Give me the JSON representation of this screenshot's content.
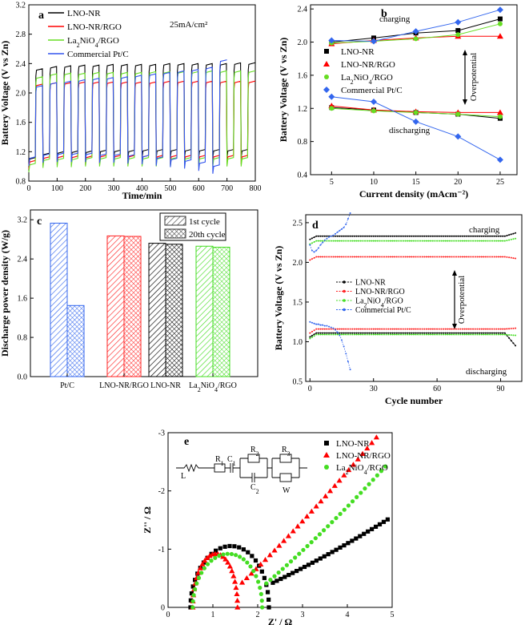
{
  "chart_data": [
    {
      "panel": "a",
      "type": "line",
      "annotation": "25mA/cm2",
      "xlabel": "Time/min",
      "ylabel": "Battery Voltage (V vs Zn)",
      "xlim": [
        0,
        800
      ],
      "ylim": [
        0.8,
        3.2
      ],
      "xticks": [
        0,
        100,
        200,
        300,
        400,
        500,
        600,
        700,
        800
      ],
      "yticks": [
        0.8,
        1.2,
        1.6,
        2.0,
        2.4,
        2.8,
        3.2
      ],
      "cycle_minutes": 50,
      "series": [
        {
          "name": "LNO-NR",
          "color": "#000000",
          "charge": [
            2.33,
            2.36,
            2.37,
            2.38,
            2.38,
            2.39,
            2.39,
            2.39,
            2.39,
            2.4,
            2.4,
            2.4,
            2.4,
            2.4,
            2.41,
            2.41
          ],
          "discharge": [
            1.12,
            1.18,
            1.2,
            1.21,
            1.21,
            1.22,
            1.22,
            1.22,
            1.23,
            1.23,
            1.23,
            1.23,
            1.23,
            1.23,
            1.23,
            1.23
          ]
        },
        {
          "name": "LNO-NR/RGO",
          "color": "#ff0000",
          "charge": [
            2.12,
            2.14,
            2.14,
            2.15,
            2.15,
            2.15,
            2.15,
            2.15,
            2.15,
            2.16,
            2.16,
            2.16,
            2.16,
            2.16,
            2.16,
            2.16
          ],
          "discharge": [
            1.08,
            1.13,
            1.14,
            1.14,
            1.14,
            1.15,
            1.15,
            1.15,
            1.15,
            1.15,
            1.15,
            1.15,
            1.15,
            1.15,
            1.15,
            1.15
          ]
        },
        {
          "name": "La2NiO4/RGO",
          "color": "#66dd22",
          "charge": [
            2.22,
            2.26,
            2.27,
            2.27,
            2.28,
            2.28,
            2.28,
            2.28,
            2.29,
            2.29,
            2.29,
            2.29,
            2.3,
            2.3,
            2.3,
            2.3
          ],
          "discharge": [
            1.04,
            1.1,
            1.11,
            1.11,
            1.12,
            1.12,
            1.12,
            1.12,
            1.12,
            1.12,
            1.12,
            1.12,
            1.12,
            1.12,
            1.12,
            1.12
          ]
        },
        {
          "name": "Commercial Pt/C",
          "color": "#3355ee",
          "charge": [
            2.1,
            2.14,
            2.16,
            2.18,
            2.2,
            2.21,
            2.22,
            2.24,
            2.26,
            2.28,
            2.3,
            2.32,
            2.35,
            2.45
          ],
          "discharge": [
            1.13,
            1.17,
            1.18,
            1.18,
            1.18,
            1.17,
            1.17,
            1.16,
            1.15,
            1.13,
            1.11,
            1.09,
            1.06,
            1.02
          ]
        }
      ]
    },
    {
      "panel": "b",
      "type": "line",
      "xlabel": "Current density (mAcm⁻²)",
      "ylabel": "Battery Voltage (V vs Zn)",
      "xlim": [
        2.5,
        27
      ],
      "ylim": [
        0.4,
        2.45
      ],
      "xticks": [
        5,
        10,
        15,
        20,
        25
      ],
      "yticks": [
        0.4,
        0.8,
        1.2,
        1.6,
        2.0,
        2.4
      ],
      "annotations": [
        "charging",
        "discharging",
        "Overpotential"
      ],
      "x": [
        5,
        10,
        15,
        20,
        25
      ],
      "series": [
        {
          "name": "LNO-NR",
          "color": "#000000",
          "marker": "square",
          "charging": [
            2.0,
            2.05,
            2.11,
            2.14,
            2.28
          ],
          "discharging": [
            1.21,
            1.18,
            1.15,
            1.13,
            1.08
          ]
        },
        {
          "name": "LNO-NR/RGO",
          "color": "#ff0000",
          "marker": "triangle",
          "charging": [
            1.98,
            2.02,
            2.05,
            2.07,
            2.07
          ],
          "discharging": [
            1.23,
            1.18,
            1.16,
            1.15,
            1.15
          ]
        },
        {
          "name": "La2NiO4/RGO",
          "color": "#66dd22",
          "marker": "circle",
          "charging": [
            1.99,
            2.01,
            2.04,
            2.09,
            2.22
          ],
          "discharging": [
            1.2,
            1.17,
            1.15,
            1.13,
            1.1
          ]
        },
        {
          "name": "Commercial Pt/C",
          "color": "#3366ee",
          "marker": "diamond",
          "charging": [
            2.02,
            2.01,
            2.13,
            2.24,
            2.39
          ],
          "discharging": [
            1.34,
            1.28,
            1.04,
            0.86,
            0.58
          ]
        }
      ]
    },
    {
      "panel": "c",
      "type": "bar",
      "ylabel": "Discharge power density (W/g)",
      "ylim": [
        0,
        3.4
      ],
      "yticks": [
        0.0,
        0.8,
        1.6,
        2.4,
        3.2
      ],
      "categories": [
        "Pt/C",
        "LNO-NR/RGO",
        "LNO-NR",
        "La2NiO4/RGO"
      ],
      "category_colors": [
        "#3366ee",
        "#ff2222",
        "#000000",
        "#44dd22"
      ],
      "legend": [
        "1st cycle",
        "20th cycle"
      ],
      "series": [
        {
          "name": "1st cycle",
          "values": [
            3.13,
            2.87,
            2.72,
            2.66
          ]
        },
        {
          "name": "20th cycle",
          "values": [
            1.45,
            2.86,
            2.7,
            2.64
          ]
        }
      ]
    },
    {
      "panel": "d",
      "type": "line",
      "xlabel": "Cycle number",
      "ylabel": "Battery Voltage (V vs Zn)",
      "xlim": [
        -2,
        100
      ],
      "ylim": [
        0.5,
        2.6
      ],
      "xticks": [
        0,
        30,
        60,
        90
      ],
      "yticks": [
        0.5,
        1.0,
        1.5,
        2.0,
        2.5
      ],
      "annotations": [
        "charging",
        "discharging",
        "Overpotential"
      ],
      "series": [
        {
          "name": "LNO-NR",
          "color": "#000000",
          "cycles": 98,
          "charging": 2.33,
          "charging_end": 2.37,
          "discharging": 1.11,
          "discharging_end": 0.95
        },
        {
          "name": "LNO-NR/RGO",
          "color": "#ff2222",
          "cycles": 98,
          "charging": 2.07,
          "charging_end": 2.05,
          "discharging": 1.16,
          "discharging_end": 1.17
        },
        {
          "name": "La2NiO4/RGO",
          "color": "#44dd22",
          "cycles": 98,
          "charging": 2.27,
          "charging_end": 2.3,
          "discharging": 1.09,
          "discharging_end": 1.08
        },
        {
          "name": "Commercial Pt/C",
          "color": "#3366ee",
          "cycles": 20,
          "charging": [
            2.22,
            2.15,
            2.13,
            2.15,
            2.18,
            2.22,
            2.25,
            2.28,
            2.3,
            2.32,
            2.33,
            2.34,
            2.36,
            2.38,
            2.4,
            2.42,
            2.44,
            2.48,
            2.55,
            2.62
          ],
          "discharging": [
            1.25,
            1.24,
            1.23,
            1.22,
            1.22,
            1.21,
            1.21,
            1.2,
            1.2,
            1.19,
            1.18,
            1.17,
            1.15,
            1.12,
            1.08,
            1.02,
            0.94,
            0.85,
            0.75,
            0.65
          ]
        }
      ]
    },
    {
      "panel": "e",
      "type": "scatter",
      "xlabel": "Z' / Ω",
      "ylabel": "Z'' / Ω",
      "xlim": [
        0,
        5
      ],
      "ylim": [
        0,
        -3
      ],
      "xticks": [
        0,
        1,
        2,
        3,
        4,
        5
      ],
      "yticks": [
        0,
        -1,
        -2,
        -3
      ],
      "circuit_labels": [
        "L",
        "R1",
        "C1",
        "R2",
        "C2",
        "R3",
        "W"
      ],
      "series": [
        {
          "name": "LNO-NR",
          "color": "#000000",
          "marker": "square",
          "r0": 0.5,
          "r_ct": 2.25,
          "height": 1.1,
          "warburg_end": [
            4.9,
            1.47
          ]
        },
        {
          "name": "LNO-NR/RGO",
          "color": "#ff0000",
          "marker": "triangle",
          "r0": 0.55,
          "r_ct": 1.55,
          "height": 0.96,
          "warburg_end": [
            4.65,
            2.92
          ]
        },
        {
          "name": "La2NiO4/RGO",
          "color": "#44dd22",
          "marker": "circle",
          "r0": 0.55,
          "r_ct": 2.1,
          "height": 0.96,
          "warburg_end": [
            4.85,
            2.42
          ]
        }
      ]
    }
  ]
}
